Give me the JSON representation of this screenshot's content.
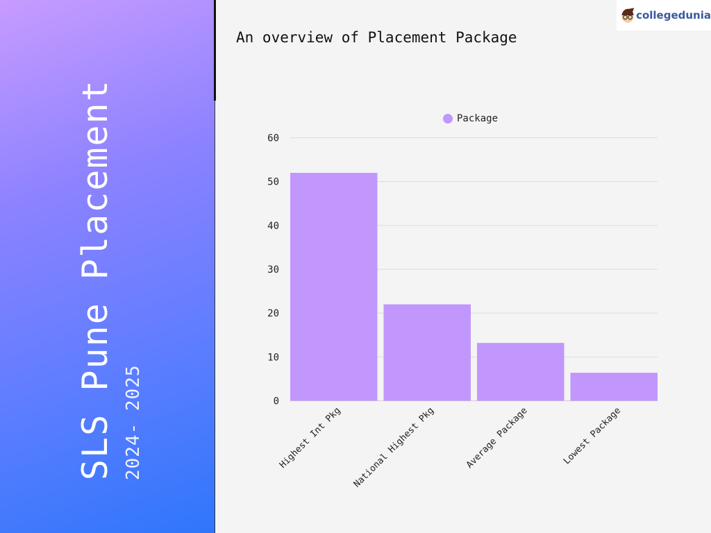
{
  "sidebar": {
    "title": "SLS Pune Placement",
    "subtitle": "2024- 2025"
  },
  "logo": {
    "text": "collegedunia"
  },
  "chart_data": {
    "type": "bar",
    "title": "An overview of Placement Package",
    "categories": [
      "Highest Int Pkg",
      "National Highest Pkg",
      "Average Package",
      "Lowest Package"
    ],
    "series": [
      {
        "name": "Package",
        "values": [
          52,
          22,
          13.2,
          6.4
        ],
        "color": "#c197fd"
      }
    ],
    "ylim": [
      0,
      60
    ],
    "yticks": [
      "0",
      "10",
      "20",
      "30",
      "40",
      "50",
      "60"
    ],
    "grid": true,
    "legend": "top-center"
  }
}
